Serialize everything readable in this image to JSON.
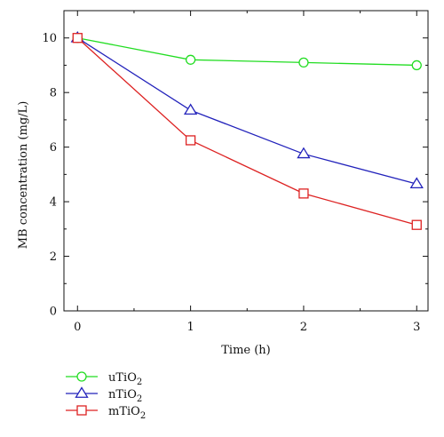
{
  "chart_data": {
    "type": "line",
    "xlabel": "Time (h)",
    "ylabel": "MB concentration (mg/L)",
    "x": [
      0,
      1,
      2,
      3
    ],
    "xlim": [
      -0.12,
      3.1
    ],
    "ylim": [
      0,
      11
    ],
    "xticks": [
      0,
      1,
      2,
      3
    ],
    "yticks": [
      0,
      2,
      4,
      6,
      8,
      10
    ],
    "grid": false,
    "legend_position": "bottom-left",
    "series": [
      {
        "name": "uTiO2",
        "label_main": "uTiO",
        "label_sub": "2",
        "color": "#22dd22",
        "marker": "circle",
        "values": [
          10.0,
          9.2,
          9.1,
          9.0
        ]
      },
      {
        "name": "nTiO2",
        "label_main": "nTiO",
        "label_sub": "2",
        "color": "#2222bb",
        "marker": "triangle",
        "values": [
          10.0,
          7.35,
          5.75,
          4.65
        ]
      },
      {
        "name": "mTiO2",
        "label_main": "mTiO",
        "label_sub": "2",
        "color": "#dd2222",
        "marker": "square",
        "values": [
          10.0,
          6.25,
          4.3,
          3.15
        ]
      }
    ]
  }
}
